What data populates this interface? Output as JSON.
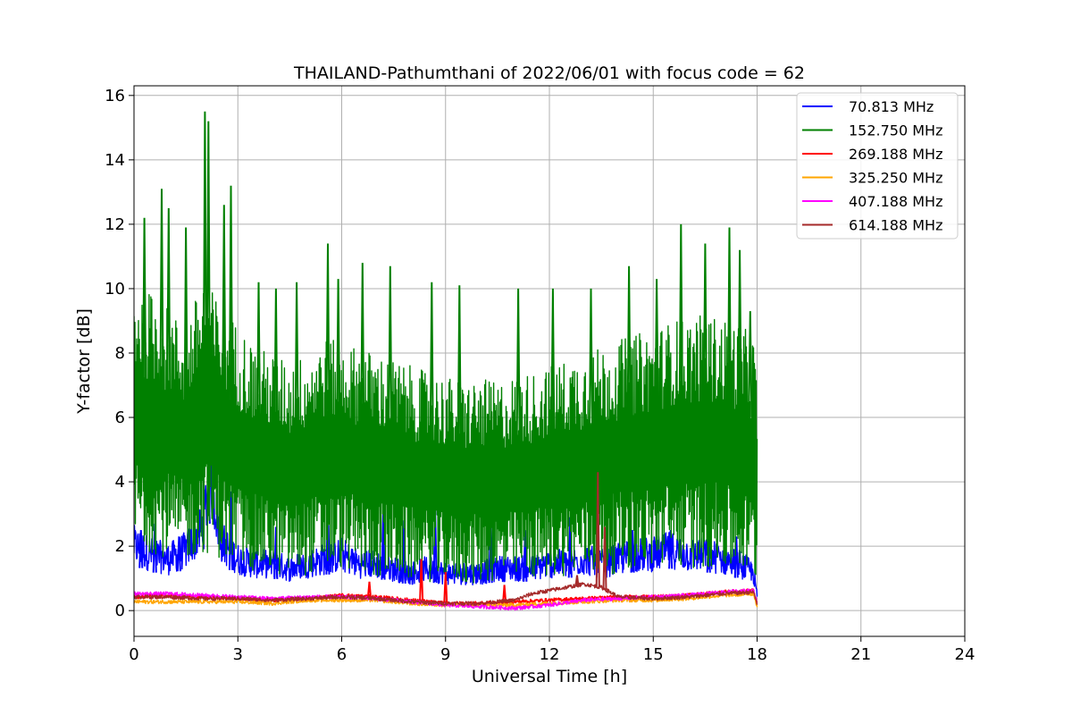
{
  "chart_data": {
    "type": "line",
    "title": "THAILAND-Pathumthani of 2022/06/01 with focus code = 62",
    "xlabel": "Universal Time [h]",
    "ylabel": "Y-factor [dB]",
    "xlim": [
      0,
      24
    ],
    "ylim": [
      -0.8,
      16.3
    ],
    "x_ticks": [
      0,
      3,
      6,
      9,
      12,
      15,
      18,
      21,
      24
    ],
    "y_ticks": [
      0,
      2,
      4,
      6,
      8,
      10,
      12,
      14,
      16
    ],
    "grid": true,
    "legend_position": "top-right",
    "series": [
      {
        "name": " 70.813 MHz",
        "color": "#0000ff",
        "x": [
          0,
          0.5,
          1,
          1.5,
          2,
          2.2,
          2.5,
          3,
          3.5,
          4,
          4.5,
          5,
          5.5,
          6,
          6.5,
          7,
          7.5,
          8,
          8.5,
          9,
          9.5,
          10,
          10.5,
          11,
          11.5,
          12,
          12.5,
          13,
          13.5,
          14,
          14.5,
          15,
          15.5,
          16,
          16.5,
          17,
          17.5,
          17.9,
          18
        ],
        "y": [
          1.4,
          1.2,
          1.1,
          1.3,
          1.8,
          3.0,
          1.5,
          1.1,
          1.0,
          1.0,
          0.9,
          1.0,
          1.1,
          1.2,
          1.0,
          1.0,
          0.9,
          0.8,
          0.9,
          0.8,
          0.8,
          0.8,
          0.9,
          0.9,
          0.9,
          1.0,
          1.0,
          1.1,
          1.0,
          1.1,
          1.2,
          1.2,
          1.3,
          1.2,
          1.2,
          1.1,
          1.0,
          0.8,
          0.3
        ],
        "peaks": [
          [
            0.2,
            2.5
          ],
          [
            0.6,
            2.7
          ],
          [
            1.3,
            2.3
          ],
          [
            2.15,
            3.8
          ],
          [
            2.8,
            3.7
          ],
          [
            4.1,
            2.6
          ],
          [
            5.6,
            3.5
          ],
          [
            7.2,
            3.0
          ],
          [
            7.8,
            2.8
          ],
          [
            8.7,
            3.2
          ],
          [
            10.3,
            2.7
          ],
          [
            11.3,
            2.5
          ],
          [
            12.6,
            2.9
          ],
          [
            14.4,
            2.5
          ],
          [
            15.5,
            2.5
          ],
          [
            16.6,
            2.4
          ],
          [
            17.4,
            2.3
          ]
        ]
      },
      {
        "name": "152.750 MHz",
        "color": "#008000",
        "x": [
          0,
          0.5,
          1,
          1.5,
          2,
          2.5,
          3,
          3.5,
          4,
          4.5,
          5,
          5.5,
          6,
          6.5,
          7,
          7.5,
          8,
          8.5,
          9,
          9.5,
          10,
          10.5,
          11,
          11.5,
          12,
          12.5,
          13,
          13.5,
          14,
          14.5,
          15,
          15.5,
          16,
          16.5,
          17,
          17.5,
          17.9,
          18
        ],
        "y_low": [
          2.0,
          1.8,
          1.6,
          1.5,
          1.8,
          1.6,
          1.3,
          1.2,
          1.1,
          1.0,
          1.1,
          1.2,
          1.3,
          1.1,
          1.0,
          1.0,
          0.9,
          0.9,
          0.8,
          0.8,
          0.8,
          0.9,
          0.9,
          1.0,
          1.0,
          1.1,
          1.1,
          1.0,
          1.2,
          1.3,
          1.3,
          1.4,
          1.3,
          1.3,
          1.2,
          1.1,
          1.0,
          0.5
        ],
        "y_high": [
          10.2,
          9.9,
          9.4,
          8.8,
          10.4,
          9.5,
          8.9,
          8.2,
          8.0,
          7.7,
          8.0,
          8.5,
          8.3,
          8.2,
          8.0,
          7.8,
          7.6,
          7.4,
          7.3,
          7.1,
          7.2,
          7.1,
          7.3,
          7.4,
          7.6,
          7.8,
          8.0,
          8.2,
          8.4,
          8.6,
          8.7,
          9.0,
          9.1,
          9.2,
          9.1,
          8.9,
          8.5,
          7.3
        ],
        "peaks": [
          [
            0.3,
            12.2
          ],
          [
            0.8,
            13.1
          ],
          [
            1.0,
            12.5
          ],
          [
            1.5,
            11.9
          ],
          [
            2.05,
            15.5
          ],
          [
            2.15,
            15.2
          ],
          [
            2.6,
            12.6
          ],
          [
            2.8,
            13.2
          ],
          [
            3.6,
            10.2
          ],
          [
            4.1,
            10.0
          ],
          [
            4.7,
            10.2
          ],
          [
            5.6,
            11.4
          ],
          [
            5.9,
            10.3
          ],
          [
            6.6,
            10.8
          ],
          [
            7.4,
            10.7
          ],
          [
            8.6,
            10.2
          ],
          [
            9.4,
            10.1
          ],
          [
            11.1,
            10.0
          ],
          [
            12.1,
            10.0
          ],
          [
            13.2,
            10.0
          ],
          [
            14.3,
            10.7
          ],
          [
            15.1,
            10.3
          ],
          [
            15.8,
            12.0
          ],
          [
            16.5,
            11.4
          ],
          [
            17.2,
            11.9
          ],
          [
            17.5,
            11.2
          ],
          [
            17.8,
            9.3
          ]
        ]
      },
      {
        "name": "269.188 MHz",
        "color": "#ff0000",
        "x": [
          0,
          1,
          2,
          3,
          4,
          5,
          6,
          7,
          8,
          9,
          10,
          11,
          12,
          13,
          14,
          15,
          16,
          17,
          17.9,
          18
        ],
        "y": [
          0.4,
          0.45,
          0.4,
          0.35,
          0.3,
          0.35,
          0.45,
          0.4,
          0.3,
          0.2,
          0.2,
          0.25,
          0.3,
          0.35,
          0.4,
          0.4,
          0.45,
          0.55,
          0.6,
          0.2
        ],
        "peaks": [
          [
            6.8,
            0.9
          ],
          [
            8.3,
            1.6
          ],
          [
            9.0,
            1.2
          ],
          [
            10.7,
            0.8
          ]
        ]
      },
      {
        "name": "325.250 MHz",
        "color": "#ffa500",
        "x": [
          0,
          1,
          2,
          3,
          4,
          5,
          6,
          7,
          8,
          9,
          10,
          11,
          12,
          13,
          14,
          15,
          16,
          17,
          17.9,
          18
        ],
        "y": [
          0.25,
          0.25,
          0.25,
          0.25,
          0.2,
          0.3,
          0.3,
          0.3,
          0.2,
          0.15,
          0.15,
          0.15,
          0.2,
          0.25,
          0.3,
          0.3,
          0.35,
          0.45,
          0.5,
          0.1
        ]
      },
      {
        "name": "407.188 MHz",
        "color": "#ff00ff",
        "x": [
          0,
          1,
          2,
          3,
          4,
          5,
          6,
          7,
          8,
          9,
          10,
          11,
          12,
          13,
          14,
          15,
          16,
          17,
          17.9,
          18
        ],
        "y": [
          0.5,
          0.5,
          0.45,
          0.4,
          0.35,
          0.4,
          0.4,
          0.35,
          0.25,
          0.15,
          0.1,
          0.05,
          0.15,
          0.3,
          0.35,
          0.4,
          0.45,
          0.55,
          0.6,
          0.2
        ]
      },
      {
        "name": "614.188 MHz",
        "color": "#a52a2a",
        "x": [
          0,
          1,
          2,
          3,
          4,
          5,
          6,
          7,
          8,
          9,
          10,
          11,
          11.5,
          12,
          12.5,
          13,
          13.5,
          14,
          15,
          16,
          17,
          17.9,
          18
        ],
        "y": [
          0.4,
          0.4,
          0.35,
          0.35,
          0.3,
          0.35,
          0.4,
          0.35,
          0.25,
          0.2,
          0.2,
          0.3,
          0.5,
          0.6,
          0.7,
          0.8,
          0.7,
          0.4,
          0.35,
          0.4,
          0.5,
          0.55,
          0.2
        ],
        "peaks": [
          [
            13.4,
            4.3
          ],
          [
            13.6,
            2.6
          ],
          [
            12.8,
            1.1
          ]
        ]
      }
    ]
  }
}
